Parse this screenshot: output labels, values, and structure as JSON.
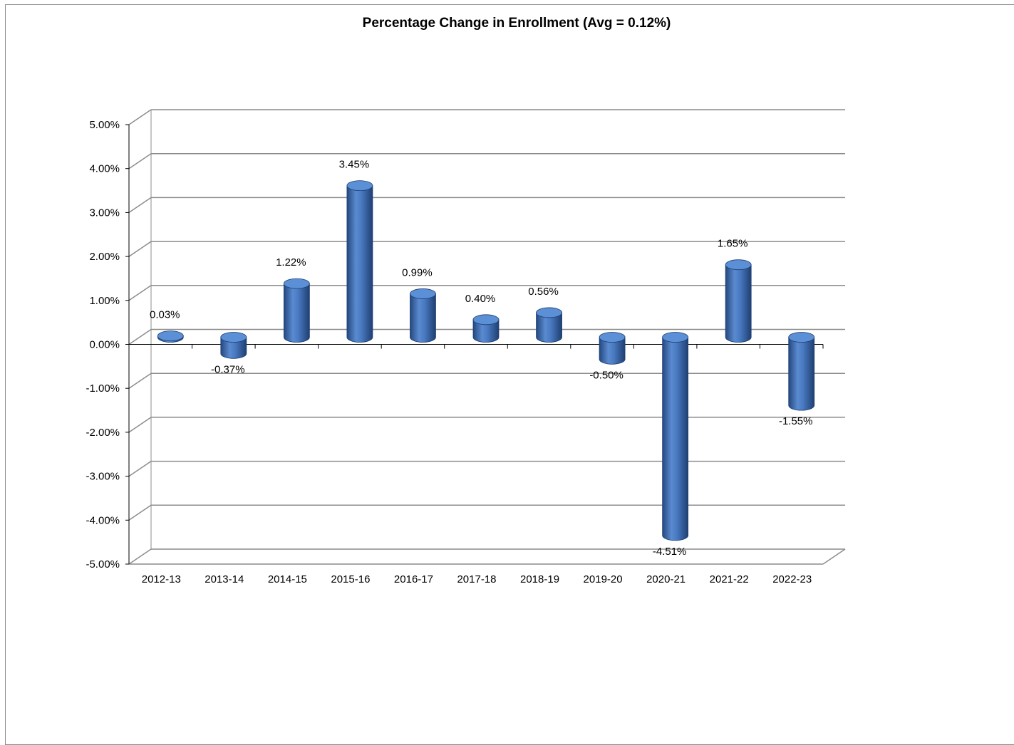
{
  "chart_data": {
    "type": "bar",
    "title": "Percentage Change in Enrollment (Avg = 0.12%)",
    "xlabel": "",
    "ylabel": "",
    "categories": [
      "2012-13",
      "2013-14",
      "2014-15",
      "2015-16",
      "2016-17",
      "2017-18",
      "2018-19",
      "2019-20",
      "2020-21",
      "2021-22",
      "2022-23"
    ],
    "values": [
      0.03,
      -0.37,
      1.22,
      3.45,
      0.99,
      0.4,
      0.56,
      -0.5,
      -4.51,
      1.65,
      -1.55
    ],
    "data_labels": [
      "0.03%",
      "-0.37%",
      "1.22%",
      "3.45%",
      "0.99%",
      "0.40%",
      "0.56%",
      "-0.50%",
      "-4.51%",
      "1.65%",
      "-1.55%"
    ],
    "ylim": [
      -5,
      5
    ],
    "y_ticks": [
      5,
      4,
      3,
      2,
      1,
      0,
      -1,
      -2,
      -3,
      -4,
      -5
    ],
    "y_tick_labels": [
      "5.00%",
      "4.00%",
      "3.00%",
      "2.00%",
      "1.00%",
      "0.00%",
      "-1.00%",
      "-2.00%",
      "-3.00%",
      "-4.00%",
      "-5.00%"
    ],
    "style": "3d-cylinder",
    "bar_color": "#4472C4",
    "gridlines": true,
    "legend": "none"
  }
}
